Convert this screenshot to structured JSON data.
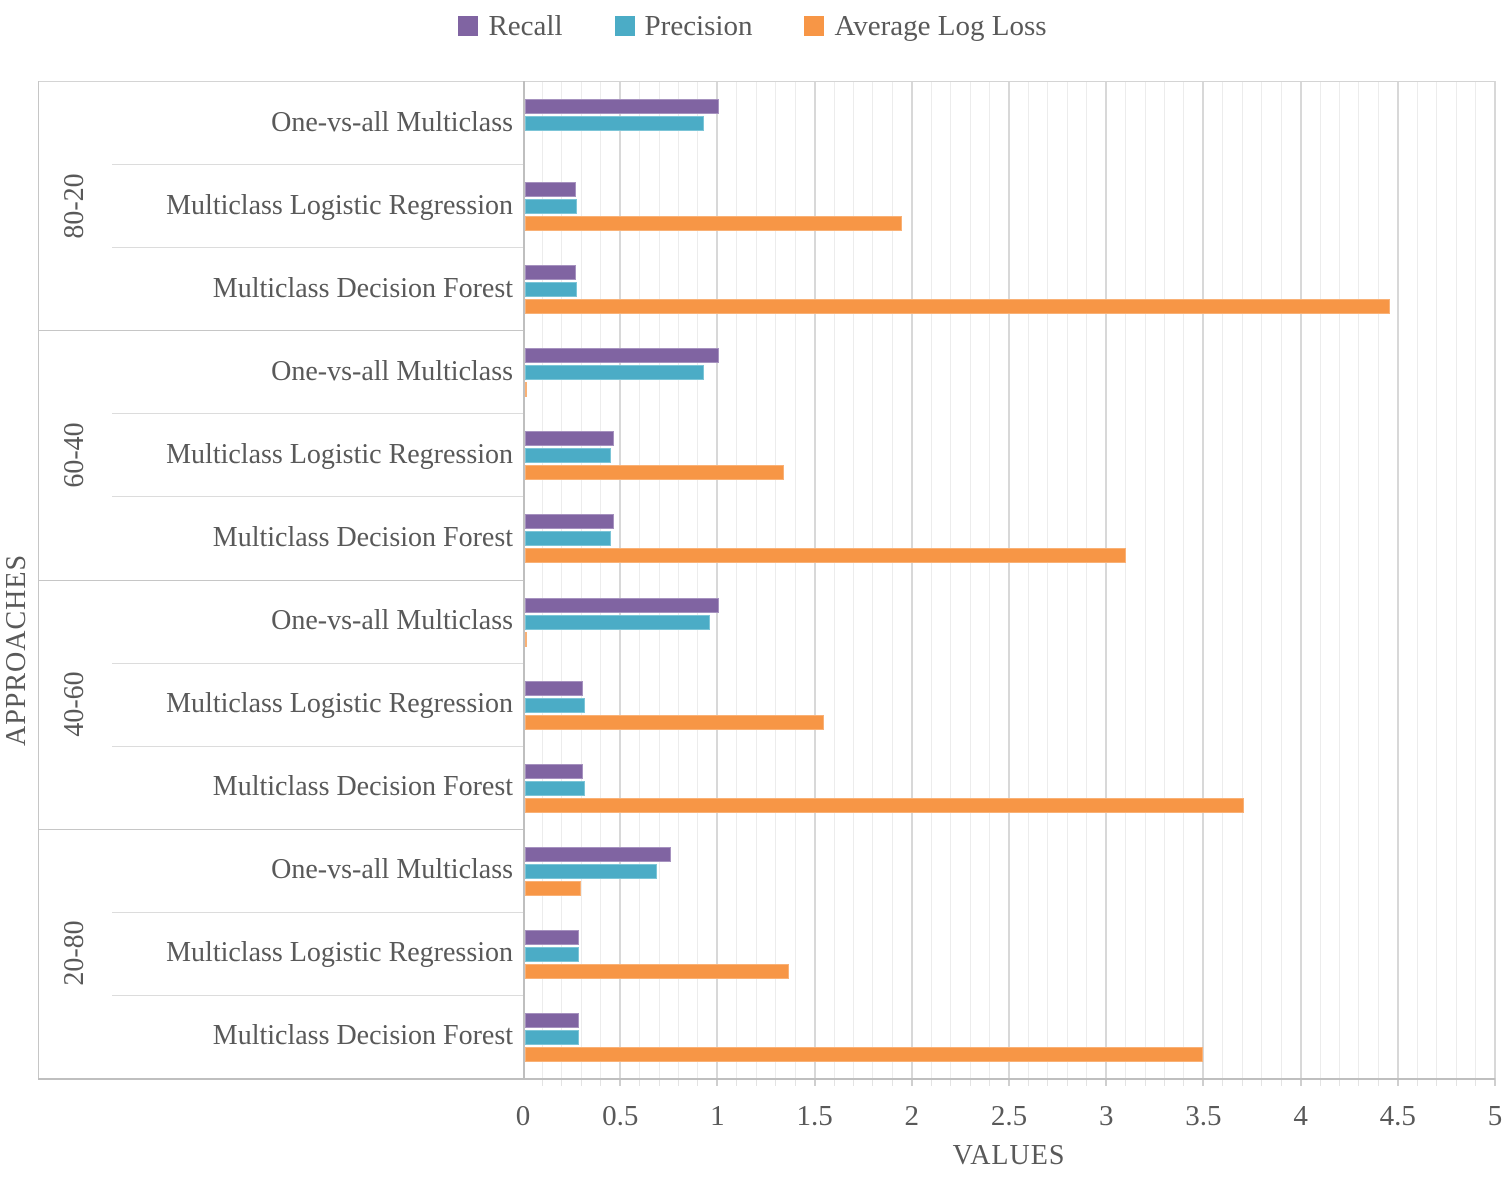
{
  "legend": [
    {
      "label": "Recall",
      "color": "#8064A2",
      "series_key": "recall"
    },
    {
      "label": "Precision",
      "color": "#4BACC6",
      "series_key": "precision"
    },
    {
      "label": "Average Log Loss",
      "color": "#F79646",
      "series_key": "logloss"
    }
  ],
  "chart_data": {
    "type": "bar",
    "orientation": "horizontal",
    "title": "",
    "xlabel": "VALUES",
    "ylabel": "APPROACHES",
    "xlim": [
      0,
      5
    ],
    "x_ticks": [
      0,
      0.5,
      1,
      1.5,
      2,
      2.5,
      3,
      3.5,
      4,
      4.5,
      5
    ],
    "x_tick_labels": [
      "0",
      "0.5",
      "1",
      "1.5",
      "2",
      "2.5",
      "3",
      "3.5",
      "4",
      "4.5",
      "5"
    ],
    "minor_grid_step": 0.1,
    "major_grid_step": 0.5,
    "grid": true,
    "legend_position": "top-center",
    "series_names": [
      "Recall",
      "Precision",
      "Average Log Loss"
    ],
    "series_colors": [
      "#8064A2",
      "#4BACC6",
      "#F79646"
    ],
    "groups": [
      {
        "label": "80-20",
        "rows": [
          {
            "label": "One-vs-all Multiclass",
            "recall": 1.0,
            "precision": 0.92,
            "logloss": 0.0
          },
          {
            "label": "Multiclass Logistic Regression",
            "recall": 0.26,
            "precision": 0.27,
            "logloss": 1.94
          },
          {
            "label": "Multiclass Decision Forest",
            "recall": 0.26,
            "precision": 0.27,
            "logloss": 4.45
          }
        ]
      },
      {
        "label": "60-40",
        "rows": [
          {
            "label": "One-vs-all Multiclass",
            "recall": 1.0,
            "precision": 0.92,
            "logloss": 0.01
          },
          {
            "label": "Multiclass Logistic Regression",
            "recall": 0.46,
            "precision": 0.44,
            "logloss": 1.33
          },
          {
            "label": "Multiclass Decision Forest",
            "recall": 0.46,
            "precision": 0.44,
            "logloss": 3.09
          }
        ]
      },
      {
        "label": "40-60",
        "rows": [
          {
            "label": "One-vs-all Multiclass",
            "recall": 1.0,
            "precision": 0.95,
            "logloss": 0.01
          },
          {
            "label": "Multiclass Logistic Regression",
            "recall": 0.3,
            "precision": 0.31,
            "logloss": 1.54
          },
          {
            "label": "Multiclass Decision Forest",
            "recall": 0.3,
            "precision": 0.31,
            "logloss": 3.7
          }
        ]
      },
      {
        "label": "20-80",
        "rows": [
          {
            "label": "One-vs-all Multiclass",
            "recall": 0.75,
            "precision": 0.68,
            "logloss": 0.29
          },
          {
            "label": "Multiclass Logistic Regression",
            "recall": 0.28,
            "precision": 0.28,
            "logloss": 1.36
          },
          {
            "label": "Multiclass Decision Forest",
            "recall": 0.28,
            "precision": 0.28,
            "logloss": 3.49
          }
        ]
      }
    ]
  }
}
